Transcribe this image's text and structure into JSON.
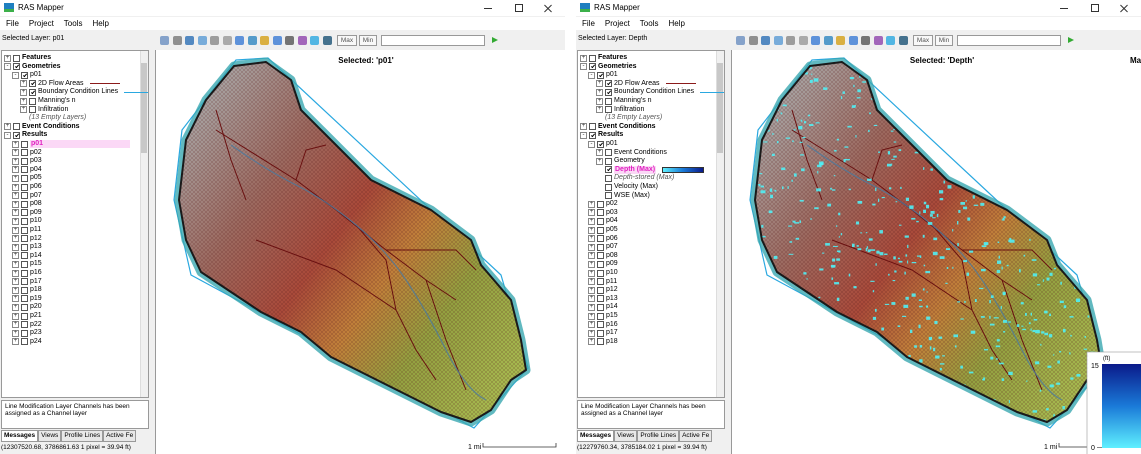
{
  "windows": [
    {
      "title": "RAS Mapper",
      "menu": [
        "File",
        "Project",
        "Tools",
        "Help"
      ],
      "selected_layer": "Selected Layer: p01",
      "toolbar_buttons": [
        "Max",
        "Min"
      ],
      "tree": [
        {
          "label": "Features",
          "level": 0,
          "expand": "+",
          "checked": false
        },
        {
          "label": "Geometries",
          "level": 0,
          "expand": "-",
          "checked": true
        },
        {
          "label": "p01",
          "level": 1,
          "expand": "-",
          "checked": true
        },
        {
          "label": "2D Flow Areas",
          "level": 2,
          "expand": "+",
          "checked": true,
          "line_color": "#8b1a1a"
        },
        {
          "label": "Boundary Condition Lines",
          "level": 2,
          "expand": "+",
          "checked": true,
          "line_color": "#2aa8e0"
        },
        {
          "label": "Manning's n",
          "level": 2,
          "expand": "+",
          "checked": false
        },
        {
          "label": "Infiltration",
          "level": 2,
          "expand": "+",
          "checked": false
        },
        {
          "label": "(13 Empty Layers)",
          "level": 2,
          "italic": true
        },
        {
          "label": "Event Conditions",
          "level": 0,
          "expand": "+",
          "checked": false
        },
        {
          "label": "Results",
          "level": 0,
          "expand": "-",
          "checked": true
        },
        {
          "label": "p01",
          "level": 1,
          "expand": "+",
          "checked": false,
          "selected": true
        },
        {
          "label": "p02",
          "level": 1,
          "expand": "+",
          "checked": false
        },
        {
          "label": "p03",
          "level": 1,
          "expand": "+",
          "checked": false
        },
        {
          "label": "p04",
          "level": 1,
          "expand": "+",
          "checked": false
        },
        {
          "label": "p05",
          "level": 1,
          "expand": "+",
          "checked": false
        },
        {
          "label": "p06",
          "level": 1,
          "expand": "+",
          "checked": false
        },
        {
          "label": "p07",
          "level": 1,
          "expand": "+",
          "checked": false
        },
        {
          "label": "p08",
          "level": 1,
          "expand": "+",
          "checked": false
        },
        {
          "label": "p09",
          "level": 1,
          "expand": "+",
          "checked": false
        },
        {
          "label": "p10",
          "level": 1,
          "expand": "+",
          "checked": false
        },
        {
          "label": "p11",
          "level": 1,
          "expand": "+",
          "checked": false
        },
        {
          "label": "p12",
          "level": 1,
          "expand": "+",
          "checked": false
        },
        {
          "label": "p13",
          "level": 1,
          "expand": "+",
          "checked": false
        },
        {
          "label": "p14",
          "level": 1,
          "expand": "+",
          "checked": false
        },
        {
          "label": "p15",
          "level": 1,
          "expand": "+",
          "checked": false
        },
        {
          "label": "p16",
          "level": 1,
          "expand": "+",
          "checked": false
        },
        {
          "label": "p17",
          "level": 1,
          "expand": "+",
          "checked": false
        },
        {
          "label": "p18",
          "level": 1,
          "expand": "+",
          "checked": false
        },
        {
          "label": "p19",
          "level": 1,
          "expand": "+",
          "checked": false
        },
        {
          "label": "p20",
          "level": 1,
          "expand": "+",
          "checked": false
        },
        {
          "label": "p21",
          "level": 1,
          "expand": "+",
          "checked": false
        },
        {
          "label": "p22",
          "level": 1,
          "expand": "+",
          "checked": false
        },
        {
          "label": "p23",
          "level": 1,
          "expand": "+",
          "checked": false
        },
        {
          "label": "p24",
          "level": 1,
          "expand": "+",
          "checked": false
        }
      ],
      "message": "Line Modification Layer Channels has been assigned as a Channel layer",
      "tabs": [
        "Messages",
        "Views",
        "Profile Lines",
        "Active Fe"
      ],
      "status": "(12307520.68, 3786861.63  1 pixel = 39.94 ft)",
      "map": {
        "selected": "Selected: 'p01'",
        "scale": "1 mi"
      }
    },
    {
      "title": "RAS Mapper",
      "menu": [
        "File",
        "Project",
        "Tools",
        "Help"
      ],
      "selected_layer": "Selected Layer: Depth",
      "toolbar_buttons": [
        "Max",
        "Min"
      ],
      "tree": [
        {
          "label": "Features",
          "level": 0,
          "expand": "+",
          "checked": false
        },
        {
          "label": "Geometries",
          "level": 0,
          "expand": "-",
          "checked": true
        },
        {
          "label": "p01",
          "level": 1,
          "expand": "-",
          "checked": true
        },
        {
          "label": "2D Flow Areas",
          "level": 2,
          "expand": "+",
          "checked": true,
          "line_color": "#8b1a1a"
        },
        {
          "label": "Boundary Condition Lines",
          "level": 2,
          "expand": "+",
          "checked": true,
          "line_color": "#2aa8e0"
        },
        {
          "label": "Manning's n",
          "level": 2,
          "expand": "+",
          "checked": false
        },
        {
          "label": "Infiltration",
          "level": 2,
          "expand": "+",
          "checked": false
        },
        {
          "label": "(13 Empty Layers)",
          "level": 2,
          "italic": true
        },
        {
          "label": "Event Conditions",
          "level": 0,
          "expand": "+",
          "checked": false
        },
        {
          "label": "Results",
          "level": 0,
          "expand": "-",
          "checked": true
        },
        {
          "label": "p01",
          "level": 1,
          "expand": "-",
          "checked": true
        },
        {
          "label": "Event Conditions",
          "level": 2,
          "expand": "+",
          "checked": false
        },
        {
          "label": "Geometry",
          "level": 2,
          "expand": "+",
          "checked": false
        },
        {
          "label": "Depth (Max)",
          "level": 2,
          "checked": true,
          "selected": true,
          "swatch": true
        },
        {
          "label": "Depth-stored (Max)",
          "level": 2,
          "checked": false,
          "italic": true
        },
        {
          "label": "Velocity (Max)",
          "level": 2,
          "checked": false
        },
        {
          "label": "WSE (Max)",
          "level": 2,
          "checked": false
        },
        {
          "label": "p02",
          "level": 1,
          "expand": "+",
          "checked": false
        },
        {
          "label": "p03",
          "level": 1,
          "expand": "+",
          "checked": false
        },
        {
          "label": "p04",
          "level": 1,
          "expand": "+",
          "checked": false
        },
        {
          "label": "p05",
          "level": 1,
          "expand": "+",
          "checked": false
        },
        {
          "label": "p06",
          "level": 1,
          "expand": "+",
          "checked": false
        },
        {
          "label": "p07",
          "level": 1,
          "expand": "+",
          "checked": false
        },
        {
          "label": "p08",
          "level": 1,
          "expand": "+",
          "checked": false
        },
        {
          "label": "p09",
          "level": 1,
          "expand": "+",
          "checked": false
        },
        {
          "label": "p10",
          "level": 1,
          "expand": "+",
          "checked": false
        },
        {
          "label": "p11",
          "level": 1,
          "expand": "+",
          "checked": false
        },
        {
          "label": "p12",
          "level": 1,
          "expand": "+",
          "checked": false
        },
        {
          "label": "p13",
          "level": 1,
          "expand": "+",
          "checked": false
        },
        {
          "label": "p14",
          "level": 1,
          "expand": "+",
          "checked": false
        },
        {
          "label": "p15",
          "level": 1,
          "expand": "+",
          "checked": false
        },
        {
          "label": "p16",
          "level": 1,
          "expand": "+",
          "checked": false
        },
        {
          "label": "p17",
          "level": 1,
          "expand": "+",
          "checked": false
        },
        {
          "label": "p18",
          "level": 1,
          "expand": "+",
          "checked": false
        }
      ],
      "message": "Line Modification Layer Channels has been assigned as a Channel layer",
      "tabs": [
        "Messages",
        "Views",
        "Profile Lines",
        "Active Fe"
      ],
      "status": "(12279760.34, 3785184.02  1 pixel = 39.94 ft)",
      "map": {
        "selected": "Selected: 'Depth'",
        "side_label": "Max",
        "scale": "1 mi",
        "legend": {
          "top": "15",
          "unit": "(ft)",
          "bottom": "0"
        }
      }
    }
  ]
}
